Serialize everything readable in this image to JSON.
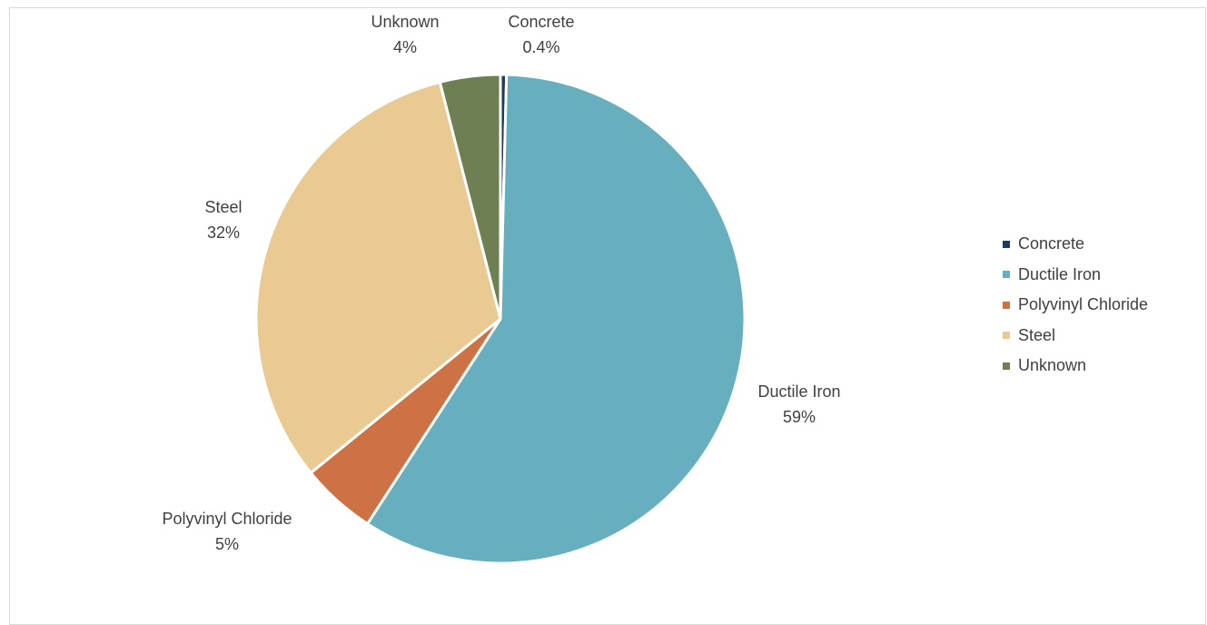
{
  "chart_data": {
    "type": "pie",
    "title": "",
    "categories": [
      "Concrete",
      "Ductile Iron",
      "Polyvinyl Chloride",
      "Steel",
      "Unknown"
    ],
    "values": [
      0.4,
      59,
      5,
      32,
      4
    ],
    "value_labels": [
      "0.4%",
      "59%",
      "5%",
      "32%",
      "4%"
    ],
    "colors": [
      "#1f3b5a",
      "#67afbe",
      "#cd7245",
      "#eaca93",
      "#6e7f54"
    ],
    "start_angle_deg": 0,
    "direction": "clockwise",
    "legend_placement": "right"
  }
}
